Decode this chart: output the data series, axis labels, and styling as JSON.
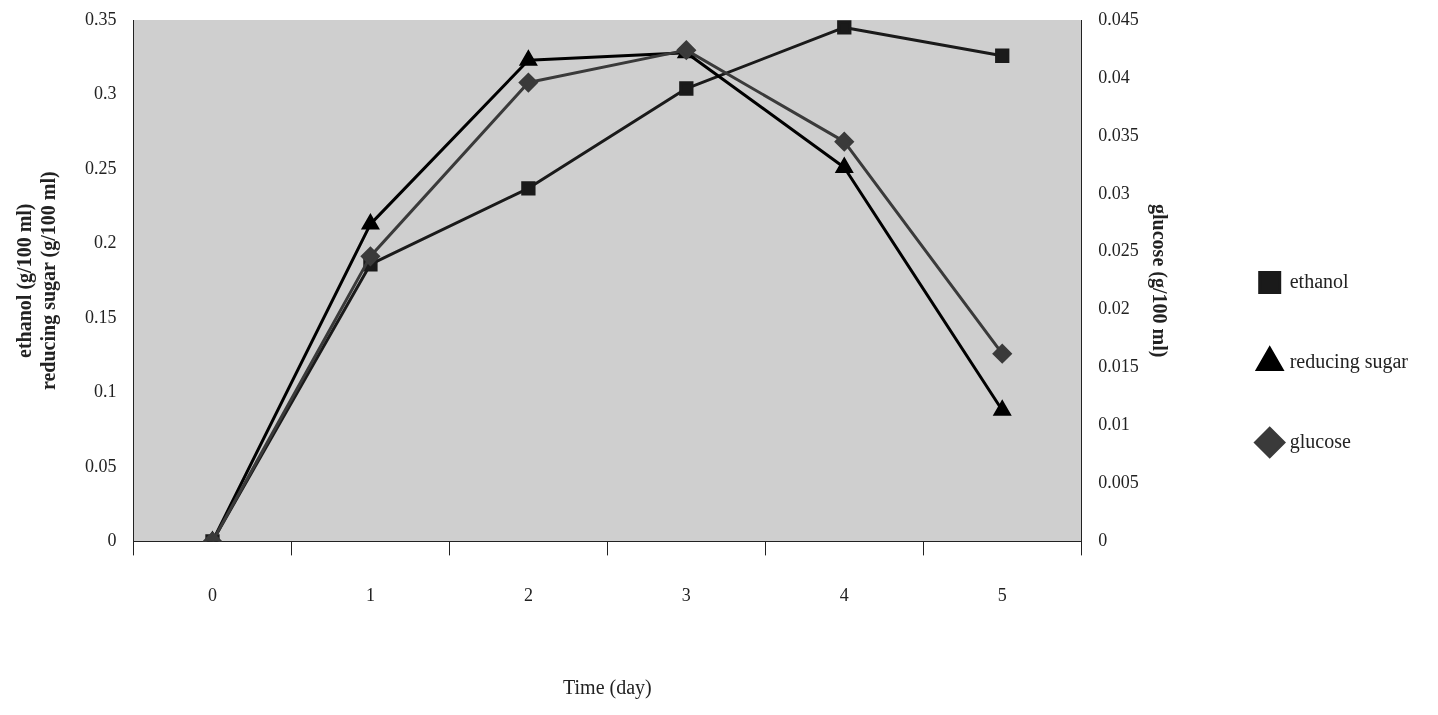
{
  "chart_data": {
    "type": "line",
    "xlabel": "Time (day)",
    "ylabel": "ethanol (g/100 ml)\nreducing sugar (g/100 ml)",
    "y2label": "glucose (g/100 ml)",
    "categories": [
      "0",
      "1",
      "2",
      "3",
      "4",
      "5"
    ],
    "series": [
      {
        "name": "ethanol",
        "color": "#1a1a1a",
        "marker": "square",
        "values": [
          0,
          0.186,
          0.237,
          0.304,
          0.345,
          0.326
        ]
      },
      {
        "name": "reducing sugar",
        "color": "#000000",
        "marker": "triangle",
        "values": [
          0,
          0.213,
          0.323,
          0.328,
          0.251,
          0.088
        ]
      },
      {
        "name": "glucose",
        "color": "#3a3a3a",
        "marker": "diamond",
        "axis": "y2",
        "values": [
          0,
          0.0246,
          0.0396,
          0.0424,
          0.0345,
          0.0162
        ]
      }
    ],
    "ylim": [
      0,
      0.35
    ],
    "yticks": [
      0,
      0.05,
      0.1,
      0.15,
      0.2,
      0.25,
      0.3,
      0.35
    ],
    "y2lim": [
      0,
      0.045
    ],
    "y2ticks": [
      0,
      0.005,
      0.01,
      0.015,
      0.02,
      0.025,
      0.03,
      0.035,
      0.04,
      0.045
    ],
    "grid": false,
    "legend": "right",
    "line_style": "solid"
  }
}
